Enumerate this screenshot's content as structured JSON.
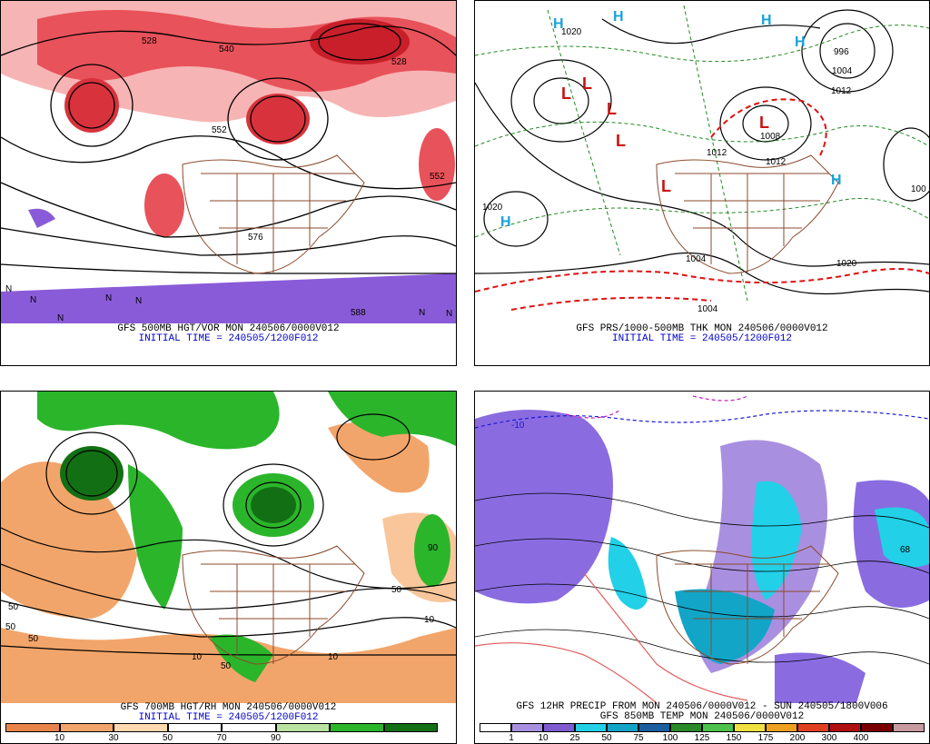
{
  "panels": [
    {
      "caption": "GFS 500MB HGT/VOR MON 240506/0000V012",
      "subcaption": "INITIAL TIME = 240505/1200F012",
      "labels": [
        "528",
        "540",
        "552",
        "552",
        "528",
        "576",
        "588"
      ],
      "markers": [
        "N",
        "N",
        "N",
        "N",
        "N",
        "N",
        "N"
      ]
    },
    {
      "caption": "GFS PRS/1000-500MB THK MON 240506/0000V012",
      "subcaption": "INITIAL TIME = 240505/1200F012",
      "labels": [
        "1020",
        "996",
        "1004",
        "1012",
        "1012",
        "1020",
        "1020",
        "1004",
        "1004",
        "1008",
        "1012",
        "100"
      ],
      "markers": [
        "H",
        "H",
        "H",
        "H",
        "H",
        "H",
        "L",
        "L",
        "L",
        "L",
        "L",
        "L"
      ]
    },
    {
      "caption": "GFS 700MB HGT/RH MON 240506/0000V012",
      "subcaption": "INITIAL TIME = 240505/1200F012",
      "labels": [
        "50",
        "50",
        "50",
        "10",
        "50",
        "10",
        "90",
        "50",
        "10"
      ],
      "colorbar": {
        "colors": [
          "#e8844a",
          "#f2a56a",
          "#ffd9b0",
          "#ffffff",
          "#ffffff",
          "#b9e3a2",
          "#2bb52b",
          "#136f13"
        ],
        "ticks": [
          "10",
          "30",
          "50",
          "70",
          "90"
        ]
      }
    },
    {
      "caption": "GFS 12HR PRECIP FROM MON 240506/0000V012 - SUN 240505/1800V006",
      "subcaption": "GFS 850MB TEMP MON 240506/0000V012",
      "labels": [
        "-10",
        "68"
      ],
      "colorbar": {
        "colors": [
          "#ffffff",
          "#a98fe0",
          "#7e5bd1",
          "#22d0e8",
          "#12a5c7",
          "#1b5fa0",
          "#2a8a2a",
          "#4cc24c",
          "#f0e040",
          "#f0a020",
          "#e04020",
          "#b01010",
          "#7a0000",
          "#c89aa0"
        ],
        "ticks": [
          "1",
          "10",
          "25",
          "50",
          "75",
          "100",
          "125",
          "150",
          "175",
          "200",
          "300",
          "400"
        ]
      }
    }
  ]
}
